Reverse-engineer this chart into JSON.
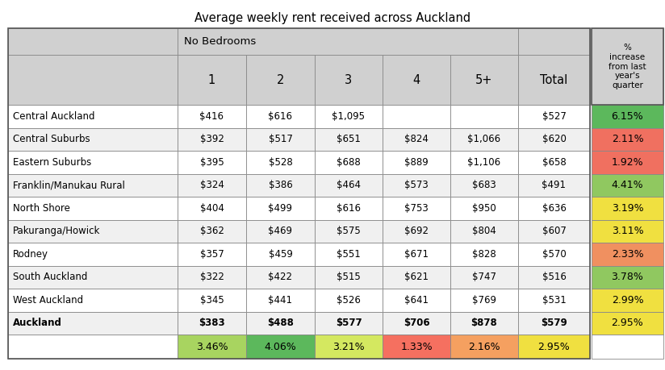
{
  "title": "Average weekly rent received across Auckland",
  "col_headers_1": [
    "",
    "No Bedrooms",
    "",
    "",
    "",
    "",
    "",
    "% increase\nfrom last\nyear’s\nquarter"
  ],
  "col_headers_2": [
    "",
    "1",
    "2",
    "3",
    "4",
    "5+",
    "Total",
    ""
  ],
  "rows": [
    [
      "Central Auckland",
      "$416",
      "$616",
      "$1,095",
      "",
      "",
      "$527",
      "6.15%"
    ],
    [
      "Central Suburbs",
      "$392",
      "$517",
      "$651",
      "$824",
      "$1,066",
      "$620",
      "2.11%"
    ],
    [
      "Eastern Suburbs",
      "$395",
      "$528",
      "$688",
      "$889",
      "$1,106",
      "$658",
      "1.92%"
    ],
    [
      "Franklin/Manukau Rural",
      "$324",
      "$386",
      "$464",
      "$573",
      "$683",
      "$491",
      "4.41%"
    ],
    [
      "North Shore",
      "$404",
      "$499",
      "$616",
      "$753",
      "$950",
      "$636",
      "3.19%"
    ],
    [
      "Pakuranga/Howick",
      "$362",
      "$469",
      "$575",
      "$692",
      "$804",
      "$607",
      "3.11%"
    ],
    [
      "Rodney",
      "$357",
      "$459",
      "$551",
      "$671",
      "$828",
      "$570",
      "2.33%"
    ],
    [
      "South Auckland",
      "$322",
      "$422",
      "$515",
      "$621",
      "$747",
      "$516",
      "3.78%"
    ],
    [
      "West Auckland",
      "$345",
      "$441",
      "$526",
      "$641",
      "$769",
      "$531",
      "2.99%"
    ],
    [
      "Auckland",
      "$383",
      "$488",
      "$577",
      "$706",
      "$878",
      "$579",
      "2.95%"
    ]
  ],
  "bottom_row": [
    "",
    "3.46%",
    "4.06%",
    "3.21%",
    "1.33%",
    "2.16%",
    "2.95%",
    ""
  ],
  "pct_col_colors": [
    "#5cb85c",
    "#f07060",
    "#f07060",
    "#90c860",
    "#f0e040",
    "#f0e040",
    "#f09060",
    "#90c860",
    "#f0e040",
    "#f0e040"
  ],
  "bottom_row_colors": [
    "#ffffff",
    "#a8d460",
    "#5cb85c",
    "#d4e860",
    "#f57060",
    "#f5a060",
    "#f0e040",
    "#ffffff"
  ],
  "header_bg": "#d0d0d0",
  "row_bg": [
    "#ffffff",
    "#f0f0f0"
  ]
}
